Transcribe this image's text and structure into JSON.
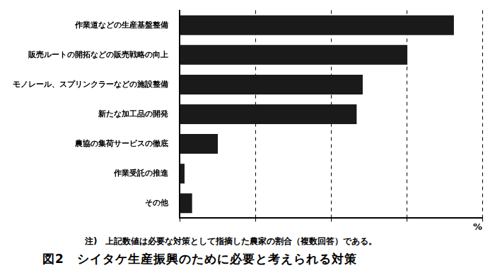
{
  "chart_data": {
    "type": "bar",
    "orientation": "horizontal",
    "title": "図2　シイタケ生産振興のために必要と考えられる対策",
    "annotations": [
      "注)　上記数値は必要な対策として指摘した農家の割合（複数回答）である。"
    ],
    "x_label": "%",
    "categories": [
      "作業道などの生産基盤整備",
      "販売ルートの開拓などの販売戦略の向上",
      "モノレール、スプリンクラーなどの施設整備",
      "新たな加工品の開発",
      "農協の集荷サービスの徹底",
      "作業受託の推進",
      "その他"
    ],
    "values": [
      72.5,
      60.2,
      48.4,
      46.8,
      10.1,
      1.3,
      3.3
    ],
    "color": "#1a1a1a",
    "xlim": [
      0,
      80
    ],
    "xticks": [
      0,
      20,
      40,
      60,
      80
    ],
    "grid": true,
    "tick_labels": "y"
  }
}
